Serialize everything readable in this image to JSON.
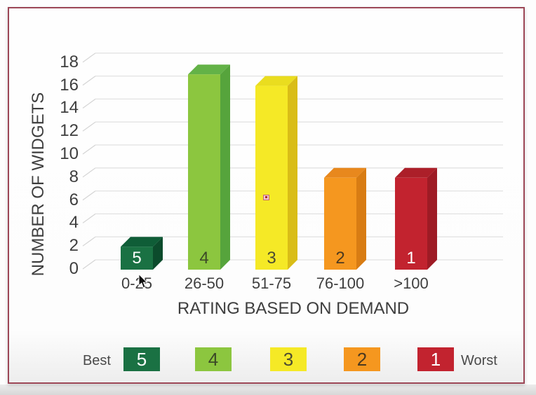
{
  "frame": {
    "border_color": "#9c4656"
  },
  "chart_data": {
    "type": "bar",
    "style": "3d-column",
    "xlabel": "RATING BASED ON DEMAND",
    "ylabel": "NUMBER OF WIDGETS",
    "categories": [
      "0-25",
      "26-50",
      "51-75",
      "76-100",
      ">100"
    ],
    "values": [
      2,
      17,
      16,
      8,
      8
    ],
    "bar_rating_labels": [
      "5",
      "4",
      "3",
      "2",
      "1"
    ],
    "ylim": [
      0,
      18
    ],
    "ytick_step": 2,
    "grid": true,
    "legend_position": "bottom",
    "bar_colors": [
      {
        "front": "#1a7143",
        "top": "#0f5d37",
        "side": "#0c4b2c",
        "label": "#ffffff"
      },
      {
        "front": "#8cc63f",
        "top": "#63b247",
        "side": "#56a43c",
        "label": "#3c4a27"
      },
      {
        "front": "#f5e926",
        "top": "#eadd1f",
        "side": "#d9bd17",
        "label": "#4c4c33"
      },
      {
        "front": "#f5971f",
        "top": "#e8881d",
        "side": "#d87c13",
        "label": "#4c3a20"
      },
      {
        "front": "#c2232f",
        "top": "#ac1f29",
        "side": "#9e1b25",
        "label": "#ffffff"
      }
    ]
  },
  "legend": {
    "best_label": "Best",
    "worst_label": "Worst",
    "items": [
      {
        "label": "5",
        "color": "#1a7143",
        "text_color": "#ffffff"
      },
      {
        "label": "4",
        "color": "#8cc63f",
        "text_color": "#3c4a27"
      },
      {
        "label": "3",
        "color": "#f5e926",
        "text_color": "#4c4c33"
      },
      {
        "label": "2",
        "color": "#f5971f",
        "text_color": "#4c3a20"
      },
      {
        "label": "1",
        "color": "#c2232f",
        "text_color": "#ffffff"
      }
    ]
  },
  "annotations": {
    "marker_color": "#ab2a33"
  }
}
